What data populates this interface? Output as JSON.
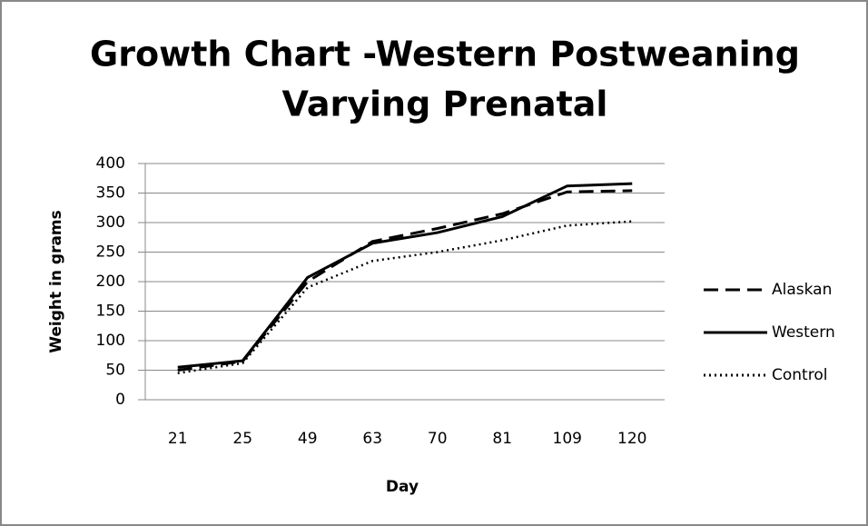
{
  "chart_data": {
    "type": "line",
    "title": [
      "Growth Chart -Western Postweaning",
      "Varying Prenatal"
    ],
    "x_label": "Day",
    "y_label": "Weight in grams",
    "categories": [
      "21",
      "25",
      "49",
      "63",
      "70",
      "81",
      "109",
      "120"
    ],
    "series": [
      {
        "name": "Alaskan",
        "color": "#000000",
        "style": "dashed",
        "values": [
          50,
          65,
          200,
          268,
          290,
          315,
          352,
          354
        ]
      },
      {
        "name": "Western",
        "color": "#000000",
        "style": "solid",
        "values": [
          55,
          66,
          207,
          265,
          283,
          310,
          362,
          366
        ]
      },
      {
        "name": "Control",
        "color": "#000000",
        "style": "dotted",
        "values": [
          45,
          62,
          190,
          235,
          250,
          270,
          295,
          302
        ]
      }
    ],
    "ylim": [
      0,
      400
    ],
    "yticks": [
      0,
      50,
      100,
      150,
      200,
      250,
      300,
      350,
      400
    ],
    "grid": true,
    "legend": "right"
  }
}
